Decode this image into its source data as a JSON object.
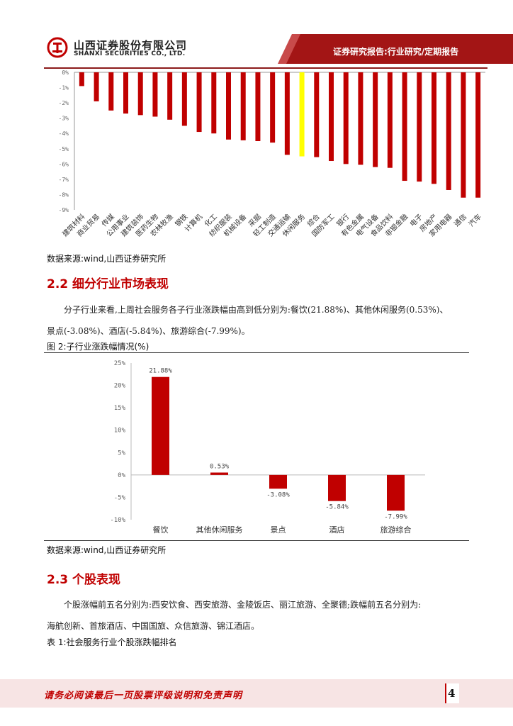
{
  "header": {
    "company_cn": "山西证券股份有限公司",
    "company_en": "SHANXI SECURITIES CO., LTD.",
    "report_type": "证券研究报告:行业研究/定期报告",
    "brand_color": "#c00000"
  },
  "chart1": {
    "source": "数据来源:wind,山西证券研究所"
  },
  "section_2_2": {
    "title": "2.2 细分行业市场表现",
    "para_line1": "分子行业来看,上周社会服务各子行业涨跌幅由高到低分别为:餐饮(21.88%)、其他休闲服务(0.53%)、",
    "para_line2": "景点(-3.08%)、酒店(-5.84%)、旅游综合(-7.99%)。",
    "figure_caption": "图 2:子行业涨跌幅情况(%)",
    "source": "数据来源:wind,山西证券研究所"
  },
  "section_2_3": {
    "title": "2.3 个股表现",
    "para_line1": "个股涨幅前五名分别为:西安饮食、西安旅游、金陵饭店、丽江旅游、全聚德;跌幅前五名分别为:",
    "para_line2": "海航创新、首旅酒店、中国国旅、众信旅游、锦江酒店。",
    "table_caption": "表 1:社会服务行业个股涨跌幅排名"
  },
  "footer": {
    "disclaimer": "请务必阅读最后一页股票评级说明和免责声明",
    "page_number": "4"
  },
  "chart_data": [
    {
      "type": "bar",
      "categories": [
        "建筑材料",
        "商业贸易",
        "传媒",
        "公用事业",
        "建筑装饰",
        "医药生物",
        "农林牧渔",
        "钢铁",
        "计算机",
        "化工",
        "纺织服装",
        "机械设备",
        "采掘",
        "轻工制造",
        "交通运输",
        "休闲服务",
        "综合",
        "国防军工",
        "银行",
        "有色金属",
        "电气设备",
        "食品饮料",
        "非银金融",
        "电子",
        "房地产",
        "家用电器",
        "通信",
        "汽车"
      ],
      "values": [
        -0.9,
        -1.9,
        -2.5,
        -2.7,
        -2.8,
        -2.9,
        -3.1,
        -3.5,
        -3.9,
        -4.0,
        -4.4,
        -4.45,
        -4.5,
        -4.6,
        -5.4,
        -5.5,
        -5.55,
        -5.8,
        -6.0,
        -6.05,
        -6.2,
        -6.25,
        -7.1,
        -7.15,
        -7.3,
        -7.7,
        -8.2,
        -8.2
      ],
      "highlight_index": 15,
      "highlight_color": "#ffff00",
      "bar_color": "#c00000",
      "yticks": [
        "0%",
        "-1%",
        "-2%",
        "-3%",
        "-4%",
        "-5%",
        "-6%",
        "-7%",
        "-8%",
        "-9%"
      ],
      "ylim": [
        -9,
        0
      ],
      "grid": false
    },
    {
      "type": "bar",
      "categories": [
        "餐饮",
        "其他休闲服务",
        "景点",
        "酒店",
        "旅游综合"
      ],
      "values": [
        21.88,
        0.53,
        -3.08,
        -5.84,
        -7.99
      ],
      "data_labels": [
        "21.88%",
        "0.53%",
        "-3.08%",
        "-5.84%",
        "-7.99%"
      ],
      "yticks": [
        "25%",
        "20%",
        "15%",
        "10%",
        "5%",
        "0%",
        "-5%",
        "-10%"
      ],
      "ylim": [
        -10,
        25
      ],
      "bar_color": "#c00000",
      "grid": false
    }
  ]
}
